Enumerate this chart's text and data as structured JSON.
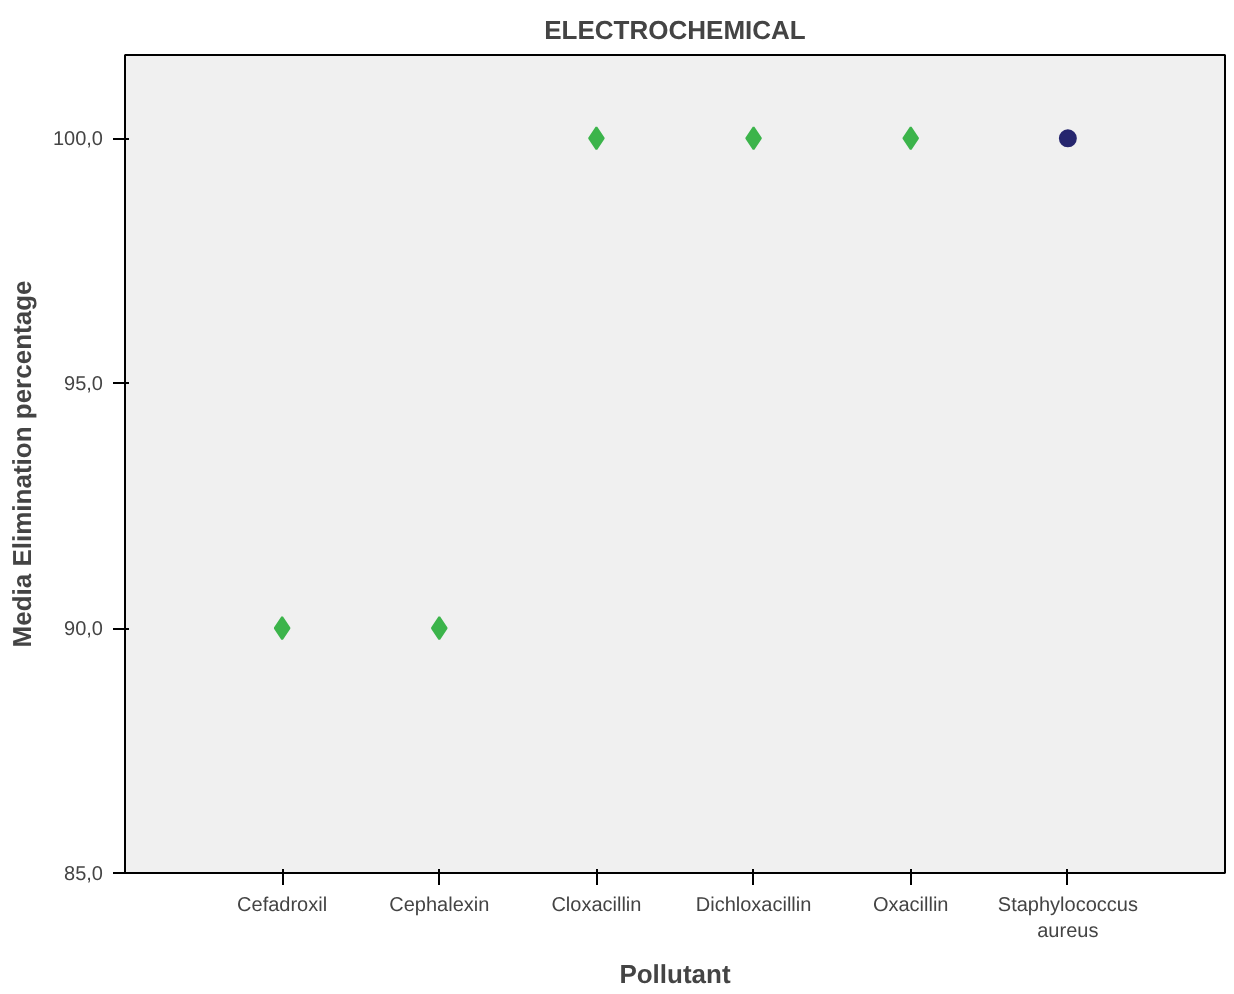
{
  "chart_data": {
    "type": "scatter",
    "title": "ELECTROCHEMICAL",
    "xlabel": "Pollutant",
    "ylabel": "Media Elimination percentage",
    "categories": [
      "Cefadroxil",
      "Cephalexin",
      "Cloxacillin",
      "Dichloxacillin",
      "Oxacillin",
      "Staphylococcus aureus"
    ],
    "series": [
      {
        "color": "#3cb44b",
        "marker": "diamond",
        "values": [
          90,
          90,
          100,
          100,
          100,
          null
        ]
      },
      {
        "color": "#26266e",
        "marker": "circle",
        "values": [
          null,
          null,
          null,
          null,
          null,
          100
        ]
      }
    ],
    "ylim": [
      85,
      101.7
    ],
    "yticks": [
      {
        "value": 85,
        "label": "85,0"
      },
      {
        "value": 90,
        "label": "90,0"
      },
      {
        "value": 95,
        "label": "95,0"
      },
      {
        "value": 100,
        "label": "100,0"
      }
    ],
    "grid": false
  }
}
